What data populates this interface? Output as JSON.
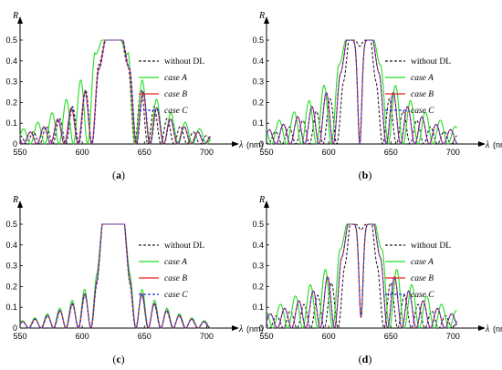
{
  "chart_data": [
    {
      "panel_label": "a",
      "type": "line",
      "ylabel": "R",
      "xlabel": "λ",
      "xunit": "(nm)",
      "xlim": [
        550,
        710
      ],
      "ylim": [
        0,
        0.55
      ],
      "xticks": [
        550,
        600,
        650,
        700
      ],
      "yticks": [
        0,
        0.1,
        0.2,
        0.3,
        0.4,
        0.5
      ],
      "legend_position": "right",
      "band": {
        "center": 625,
        "halfwidth": 12,
        "plateau_halfwidth": 7,
        "notch_depth": 0
      },
      "series": [
        {
          "name": "without DL",
          "style": "dashed",
          "color": "#222222",
          "center_shift": 0,
          "halfwidth_scale": 1.0,
          "ripple_amplitude": 0.38,
          "ripple_period": 10.5,
          "ripple_decay": 28
        },
        {
          "name": "case A",
          "style": "solid",
          "color": "#22dd22",
          "center_shift": -1.5,
          "halfwidth_scale": 1.12,
          "ripple_amplitude": 0.44,
          "ripple_period": 11.5,
          "ripple_decay": 32
        },
        {
          "name": "case B",
          "style": "solid",
          "color": "#ee2222",
          "center_shift": 0.5,
          "halfwidth_scale": 1.04,
          "ripple_amplitude": 0.36,
          "ripple_period": 11,
          "ripple_decay": 30
        },
        {
          "name": "case C",
          "style": "dashed",
          "color": "#2233dd",
          "center_shift": 0.8,
          "halfwidth_scale": 1.04,
          "ripple_amplitude": 0.36,
          "ripple_period": 11,
          "ripple_decay": 30
        }
      ]
    },
    {
      "panel_label": "b",
      "type": "line",
      "ylabel": "R",
      "xlabel": "λ",
      "xunit": "(nm)",
      "xlim": [
        550,
        710
      ],
      "ylim": [
        0,
        0.55
      ],
      "xticks": [
        550,
        600,
        650,
        700
      ],
      "yticks": [
        0,
        0.1,
        0.2,
        0.3,
        0.4,
        0.5
      ],
      "legend_position": "right",
      "band": {
        "center": 625,
        "halfwidth": 13,
        "plateau_halfwidth": 9,
        "notch_depth": 0.5
      },
      "series": [
        {
          "name": "without DL",
          "style": "dashed",
          "color": "#222222",
          "center_shift": 0,
          "halfwidth_scale": 1.0,
          "ripple_amplitude": 0.3,
          "ripple_period": 11,
          "ripple_decay": 34
        },
        {
          "name": "case A",
          "style": "solid",
          "color": "#22dd22",
          "center_shift": 0,
          "halfwidth_scale": 1.3,
          "ripple_amplitude": 0.38,
          "ripple_period": 12,
          "ripple_decay": 40
        },
        {
          "name": "case B",
          "style": "solid",
          "color": "#ee2222",
          "center_shift": 0,
          "halfwidth_scale": 1.2,
          "ripple_amplitude": 0.34,
          "ripple_period": 11.5,
          "ripple_decay": 36
        },
        {
          "name": "case C",
          "style": "dashed",
          "color": "#2233dd",
          "center_shift": 0,
          "halfwidth_scale": 1.2,
          "ripple_amplitude": 0.34,
          "ripple_period": 11.5,
          "ripple_decay": 36
        }
      ]
    },
    {
      "panel_label": "c",
      "type": "line",
      "ylabel": "R",
      "xlabel": "λ",
      "xunit": "(nm)",
      "xlim": [
        550,
        710
      ],
      "ylim": [
        0,
        0.55
      ],
      "xticks": [
        550,
        600,
        650,
        700
      ],
      "yticks": [
        0,
        0.1,
        0.2,
        0.3,
        0.4,
        0.5
      ],
      "legend_position": "right",
      "band": {
        "center": 625,
        "halfwidth": 13,
        "plateau_halfwidth": 9,
        "notch_depth": 0
      },
      "series": [
        {
          "name": "without DL",
          "style": "dashed",
          "color": "#222222",
          "center_shift": 0,
          "halfwidth_scale": 1.0,
          "ripple_amplitude": 0.22,
          "ripple_period": 10,
          "ripple_decay": 30
        },
        {
          "name": "case A",
          "style": "solid",
          "color": "#22dd22",
          "center_shift": 0,
          "halfwidth_scale": 1.02,
          "ripple_amplitude": 0.26,
          "ripple_period": 10,
          "ripple_decay": 30
        },
        {
          "name": "case B",
          "style": "solid",
          "color": "#ee2222",
          "center_shift": 0,
          "halfwidth_scale": 1.01,
          "ripple_amplitude": 0.23,
          "ripple_period": 10,
          "ripple_decay": 30
        },
        {
          "name": "case C",
          "style": "dashed",
          "color": "#2233dd",
          "center_shift": 0,
          "halfwidth_scale": 1.01,
          "ripple_amplitude": 0.23,
          "ripple_period": 10,
          "ripple_decay": 30
        }
      ]
    },
    {
      "panel_label": "d",
      "type": "line",
      "ylabel": "R",
      "xlabel": "λ",
      "xunit": "(nm)",
      "xlim": [
        550,
        710
      ],
      "ylim": [
        0,
        0.55
      ],
      "xticks": [
        550,
        600,
        650,
        700
      ],
      "yticks": [
        0,
        0.1,
        0.2,
        0.3,
        0.4,
        0.5
      ],
      "legend_position": "right",
      "band": {
        "center": 626,
        "halfwidth": 13,
        "plateau_halfwidth": 9,
        "notch_depth": 0.45
      },
      "series": [
        {
          "name": "without DL",
          "style": "dashed",
          "color": "#222222",
          "center_shift": 0,
          "halfwidth_scale": 1.0,
          "ripple_amplitude": 0.3,
          "ripple_period": 11,
          "ripple_decay": 34
        },
        {
          "name": "case A",
          "style": "solid",
          "color": "#22dd22",
          "center_shift": 0,
          "halfwidth_scale": 1.3,
          "ripple_amplitude": 0.38,
          "ripple_period": 12,
          "ripple_decay": 40
        },
        {
          "name": "case B",
          "style": "solid",
          "color": "#ee2222",
          "center_shift": 0,
          "halfwidth_scale": 1.2,
          "ripple_amplitude": 0.34,
          "ripple_period": 11.5,
          "ripple_decay": 36
        },
        {
          "name": "case C",
          "style": "dashed",
          "color": "#2233dd",
          "center_shift": 0,
          "halfwidth_scale": 1.2,
          "ripple_amplitude": 0.34,
          "ripple_period": 11.5,
          "ripple_decay": 36
        }
      ]
    }
  ]
}
